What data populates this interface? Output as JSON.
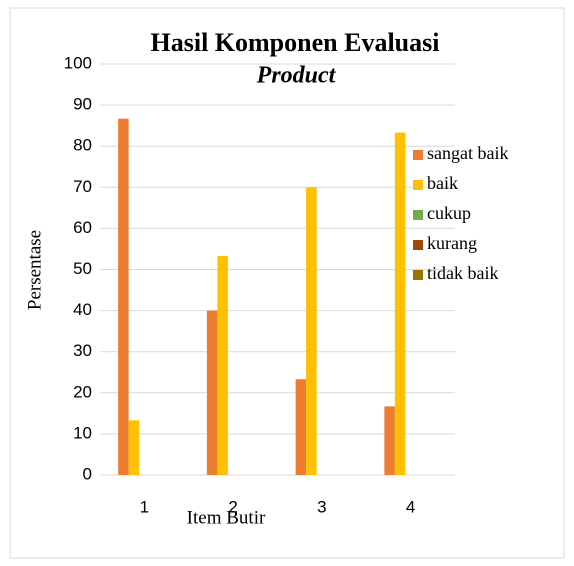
{
  "chart_data": {
    "type": "bar",
    "title": "Hasil Komponen Evaluasi",
    "subtitle": "Product",
    "x_label": "Item Butir",
    "y_label": "Persentase",
    "categories": [
      "1",
      "2",
      "3",
      "4"
    ],
    "series": [
      {
        "name": "sangat baik",
        "color": "#ed7d31",
        "values": [
          86.7,
          40,
          23.3,
          16.7
        ]
      },
      {
        "name": "baik",
        "color": "#ffc000",
        "values": [
          13.3,
          53.3,
          70,
          83.3
        ]
      },
      {
        "name": "cukup",
        "color": "#70ad47",
        "values": [
          0,
          0,
          0,
          0
        ]
      },
      {
        "name": "kurang",
        "color": "#9e480e",
        "values": [
          0,
          0,
          0,
          0
        ]
      },
      {
        "name": "tidak baik",
        "color": "#997300",
        "values": [
          0,
          0,
          0,
          0
        ]
      }
    ],
    "ylim": [
      0,
      100
    ],
    "yticks": [
      0,
      10,
      20,
      30,
      40,
      50,
      60,
      70,
      80,
      90,
      100
    ],
    "grid": true,
    "legend": "right"
  }
}
